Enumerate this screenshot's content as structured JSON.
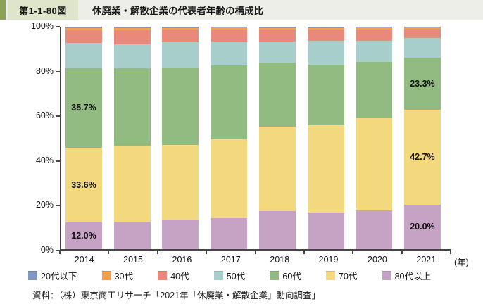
{
  "header": {
    "figure_label": "第1-1-80図",
    "title": "休廃業・解散企業の代表者年齢の構成比"
  },
  "colors": {
    "accent_green": "#8ba356",
    "label_box": "#dee5cb",
    "header_bg": "#edeee7",
    "axis": "#464646"
  },
  "chart_data": {
    "type": "bar",
    "subtype": "stacked-100-percent",
    "title": "休廃業・解散企業の代表者年齢の構成比",
    "categories": [
      "2014",
      "2015",
      "2016",
      "2017",
      "2018",
      "2019",
      "2020",
      "2021"
    ],
    "x_axis_unit": "(年)",
    "y_ticks": [
      100,
      80,
      60,
      40,
      20,
      0
    ],
    "y_tick_suffix": "%",
    "ylim": [
      0,
      100
    ],
    "grid": false,
    "legend_position": "bottom",
    "stack_order": "first series on top, last series at bottom",
    "series": [
      {
        "name": "20代以下",
        "color": "#7f97c2",
        "values": [
          0.5,
          0.6,
          0.5,
          0.4,
          0.5,
          0.5,
          0.4,
          0.2
        ]
      },
      {
        "name": "30代",
        "color": "#f3a04e",
        "values": [
          1.0,
          1.1,
          0.8,
          0.8,
          0.8,
          0.7,
          0.8,
          0.7
        ]
      },
      {
        "name": "40代",
        "color": "#e9897c",
        "values": [
          5.9,
          6.2,
          5.8,
          5.6,
          5.4,
          5.1,
          5.0,
          4.2
        ]
      },
      {
        "name": "50代",
        "color": "#a8cecb",
        "values": [
          11.3,
          10.7,
          11.2,
          10.6,
          9.6,
          10.9,
          9.7,
          8.9
        ]
      },
      {
        "name": "60代",
        "color": "#92bb81",
        "values": [
          35.7,
          35.0,
          34.8,
          33.2,
          28.5,
          27.0,
          25.1,
          23.3
        ]
      },
      {
        "name": "70代",
        "color": "#f3d87e",
        "values": [
          33.6,
          34.2,
          33.7,
          35.4,
          38.2,
          39.5,
          41.5,
          42.7
        ]
      },
      {
        "name": "80代以上",
        "color": "#c6a3c5",
        "values": [
          12.0,
          12.2,
          13.2,
          14.0,
          17.0,
          16.3,
          17.5,
          20.0
        ]
      }
    ],
    "data_labels": [
      {
        "category": "2014",
        "series": "60代",
        "text": "35.7%"
      },
      {
        "category": "2014",
        "series": "70代",
        "text": "33.6%"
      },
      {
        "category": "2014",
        "series": "80代以上",
        "text": "12.0%"
      },
      {
        "category": "2021",
        "series": "60代",
        "text": "23.3%"
      },
      {
        "category": "2021",
        "series": "70代",
        "text": "42.7%"
      },
      {
        "category": "2021",
        "series": "80代以上",
        "text": "20.0%"
      }
    ]
  },
  "source": {
    "text": "資料：（株）東京商工リサーチ「2021年「休廃業・解散企業」動向調査」"
  }
}
